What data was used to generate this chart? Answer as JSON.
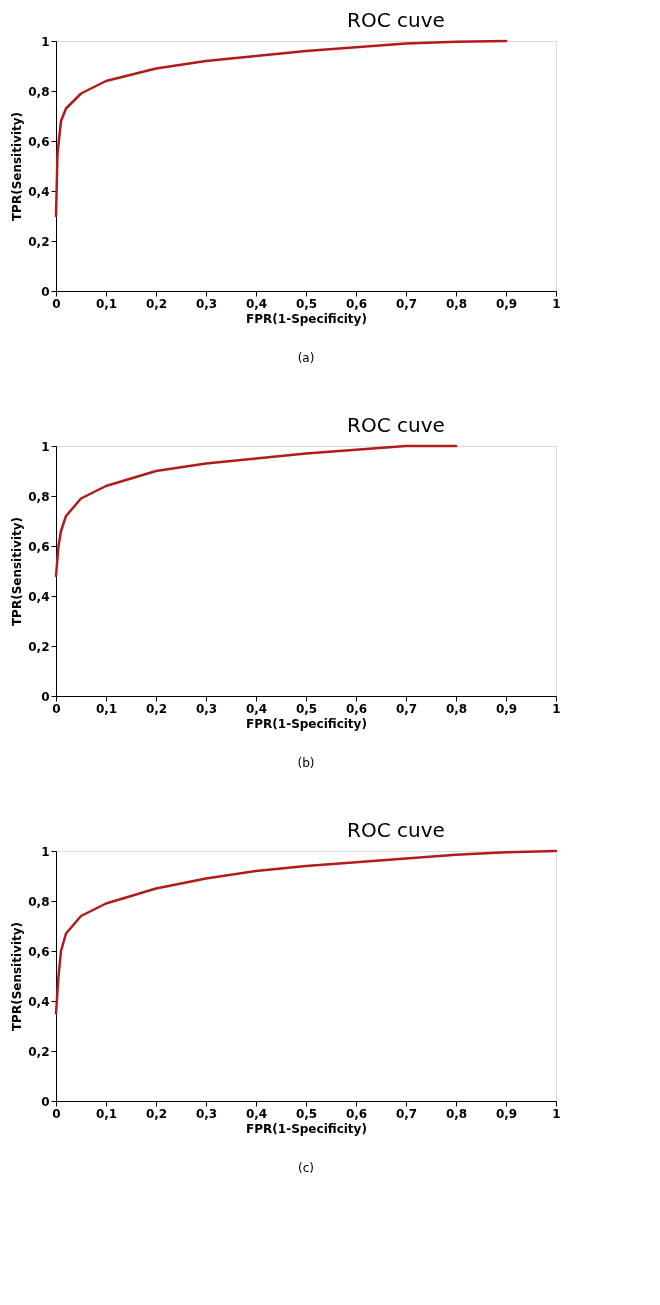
{
  "chart_data": [
    {
      "type": "line",
      "title": "ROC cuve",
      "xlabel": "FPR(1-Specificity)",
      "ylabel": "TPR(Sensitivity)",
      "annotations": [
        "(a)"
      ],
      "x": [
        0,
        0.003,
        0.01,
        0.02,
        0.05,
        0.1,
        0.2,
        0.3,
        0.4,
        0.5,
        0.6,
        0.7,
        0.8,
        0.9
      ],
      "series": [
        {
          "color": "#b01c1c",
          "values": [
            0.3,
            0.55,
            0.68,
            0.73,
            0.79,
            0.84,
            0.89,
            0.92,
            0.94,
            0.96,
            0.975,
            0.99,
            0.997,
            1.0
          ]
        }
      ],
      "xlim": [
        0,
        1
      ],
      "ylim": [
        0,
        1
      ],
      "grid": false,
      "marker": "none",
      "line_style": "solid",
      "xticks": [
        0,
        {
          "value": 0.1,
          "label": "0,1"
        },
        {
          "value": 0.2,
          "label": "0,2"
        },
        {
          "value": 0.3,
          "label": "0,3"
        },
        {
          "value": 0.4,
          "label": "0,4"
        },
        {
          "value": 0.5,
          "label": "0,5"
        },
        {
          "value": 0.6,
          "label": "0,6"
        },
        {
          "value": 0.7,
          "label": "0,7"
        },
        {
          "value": 0.8,
          "label": "0,8"
        },
        {
          "value": 0.9,
          "label": "0,9"
        },
        1
      ],
      "yticks": [
        0,
        {
          "value": 0.2,
          "label": "0,2"
        },
        {
          "value": 0.4,
          "label": "0,4"
        },
        {
          "value": 0.6,
          "label": "0,6"
        },
        {
          "value": 0.8,
          "label": "0,8"
        },
        1
      ]
    },
    {
      "type": "line",
      "title": "ROC cuve",
      "xlabel": "FPR(1-Specificity)",
      "ylabel": "TPR(Sensitivity)",
      "annotations": [
        "(b)"
      ],
      "x": [
        0,
        0.005,
        0.01,
        0.02,
        0.05,
        0.1,
        0.2,
        0.3,
        0.4,
        0.5,
        0.6,
        0.7,
        0.8
      ],
      "series": [
        {
          "color": "#b01c1c",
          "values": [
            0.48,
            0.6,
            0.66,
            0.72,
            0.79,
            0.84,
            0.9,
            0.93,
            0.95,
            0.97,
            0.985,
            1.0,
            1.0
          ]
        }
      ],
      "xlim": [
        0,
        1
      ],
      "ylim": [
        0,
        1
      ],
      "grid": false,
      "marker": "none",
      "line_style": "solid",
      "xticks": [
        0,
        {
          "value": 0.1,
          "label": "0,1"
        },
        {
          "value": 0.2,
          "label": "0,2"
        },
        {
          "value": 0.3,
          "label": "0,3"
        },
        {
          "value": 0.4,
          "label": "0,4"
        },
        {
          "value": 0.5,
          "label": "0,5"
        },
        {
          "value": 0.6,
          "label": "0,6"
        },
        {
          "value": 0.7,
          "label": "0,7"
        },
        {
          "value": 0.8,
          "label": "0,8"
        },
        {
          "value": 0.9,
          "label": "0,9"
        },
        1
      ],
      "yticks": [
        0,
        {
          "value": 0.2,
          "label": "0,2"
        },
        {
          "value": 0.4,
          "label": "0,4"
        },
        {
          "value": 0.6,
          "label": "0,6"
        },
        {
          "value": 0.8,
          "label": "0,8"
        },
        1
      ]
    },
    {
      "type": "line",
      "title": "ROC cuve",
      "xlabel": "FPR(1-Specificity)",
      "ylabel": "TPR(Sensitivity)",
      "annotations": [
        "(c)"
      ],
      "x": [
        0,
        0.005,
        0.01,
        0.02,
        0.05,
        0.1,
        0.2,
        0.3,
        0.4,
        0.5,
        0.6,
        0.7,
        0.8,
        0.9,
        1.0
      ],
      "series": [
        {
          "color": "#b01c1c",
          "values": [
            0.35,
            0.5,
            0.6,
            0.67,
            0.74,
            0.79,
            0.85,
            0.89,
            0.92,
            0.94,
            0.955,
            0.97,
            0.985,
            0.995,
            1.0
          ]
        }
      ],
      "xlim": [
        0,
        1
      ],
      "ylim": [
        0,
        1
      ],
      "grid": false,
      "marker": "none",
      "line_style": "solid",
      "xticks": [
        0,
        {
          "value": 0.1,
          "label": "0,1"
        },
        {
          "value": 0.2,
          "label": "0,2"
        },
        {
          "value": 0.3,
          "label": "0,3"
        },
        {
          "value": 0.4,
          "label": "0,4"
        },
        {
          "value": 0.5,
          "label": "0,5"
        },
        {
          "value": 0.6,
          "label": "0,6"
        },
        {
          "value": 0.7,
          "label": "0,7"
        },
        {
          "value": 0.8,
          "label": "0,8"
        },
        {
          "value": 0.9,
          "label": "0,9"
        },
        1
      ],
      "yticks": [
        0,
        {
          "value": 0.2,
          "label": "0,2"
        },
        {
          "value": 0.4,
          "label": "0,4"
        },
        {
          "value": 0.6,
          "label": "0,6"
        },
        {
          "value": 0.8,
          "label": "0,8"
        },
        1
      ]
    }
  ]
}
